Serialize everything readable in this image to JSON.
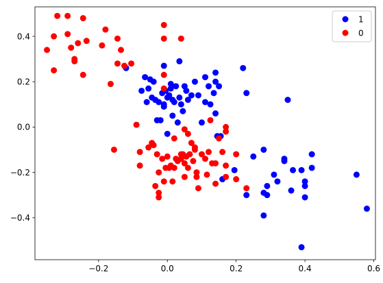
{
  "chart_data": {
    "type": "scatter",
    "title": "",
    "xlabel": "",
    "ylabel": "",
    "xlim": [
      -0.385,
      0.605
    ],
    "ylim": [
      -0.585,
      0.53
    ],
    "xticks": [
      -0.2,
      0.0,
      0.2,
      0.4,
      0.6
    ],
    "xtick_labels": [
      "−0.2",
      "0.0",
      "0.2",
      "0.4",
      "0.6"
    ],
    "yticks": [
      -0.4,
      -0.2,
      0.0,
      0.2,
      0.4
    ],
    "ytick_labels": [
      "−0.4",
      "−0.2",
      "0.0",
      "0.2",
      "0.4"
    ],
    "grid": false,
    "legend_position": "top-right",
    "series": [
      {
        "name": "1",
        "color": "#0000ff",
        "points": [
          [
            -0.12,
            0.26
          ],
          [
            -0.075,
            0.16
          ],
          [
            -0.065,
            0.22
          ],
          [
            -0.06,
            0.11
          ],
          [
            -0.055,
            0.17
          ],
          [
            -0.05,
            0.21
          ],
          [
            -0.045,
            0.13
          ],
          [
            -0.04,
            0.2
          ],
          [
            -0.035,
            0.12
          ],
          [
            -0.03,
            0.03
          ],
          [
            -0.025,
            0.11
          ],
          [
            -0.02,
            0.03
          ],
          [
            -0.015,
            0.15
          ],
          [
            -0.01,
            0.27
          ],
          [
            -0.01,
            0.1
          ],
          [
            -0.01,
            0.09
          ],
          [
            -0.005,
            0.16
          ],
          [
            0.0,
            0.13
          ],
          [
            0.0,
            -0.03
          ],
          [
            0.005,
            0.14
          ],
          [
            0.01,
            0.19
          ],
          [
            0.01,
            0.17
          ],
          [
            0.015,
            0.12
          ],
          [
            0.015,
            0.05
          ],
          [
            0.02,
            0.11
          ],
          [
            0.025,
            0.18
          ],
          [
            0.03,
            0.02
          ],
          [
            0.035,
            0.29
          ],
          [
            0.035,
            0.13
          ],
          [
            0.04,
            0.1
          ],
          [
            0.045,
            0.07
          ],
          [
            0.05,
            0.18
          ],
          [
            0.055,
            0.16
          ],
          [
            0.06,
            0.12
          ],
          [
            0.07,
            0.14
          ],
          [
            0.08,
            0.2
          ],
          [
            0.09,
            0.14
          ],
          [
            0.1,
            0.02
          ],
          [
            0.11,
            0.22
          ],
          [
            0.11,
            0.11
          ],
          [
            0.12,
            0.18
          ],
          [
            0.125,
            0.1
          ],
          [
            0.135,
            0.15
          ],
          [
            0.14,
            0.24
          ],
          [
            0.14,
            0.2
          ],
          [
            0.14,
            0.06
          ],
          [
            0.145,
            -0.04
          ],
          [
            0.15,
            0.18
          ],
          [
            0.155,
            -0.04
          ],
          [
            0.16,
            -0.23
          ],
          [
            0.195,
            -0.19
          ],
          [
            0.22,
            0.26
          ],
          [
            0.23,
            0.15
          ],
          [
            0.23,
            -0.3
          ],
          [
            0.25,
            -0.13
          ],
          [
            0.28,
            -0.1
          ],
          [
            0.28,
            -0.29
          ],
          [
            0.28,
            -0.39
          ],
          [
            0.29,
            -0.3
          ],
          [
            0.29,
            -0.26
          ],
          [
            0.31,
            -0.21
          ],
          [
            0.32,
            -0.24
          ],
          [
            0.34,
            -0.14
          ],
          [
            0.34,
            -0.15
          ],
          [
            0.35,
            0.12
          ],
          [
            0.36,
            -0.28
          ],
          [
            0.365,
            -0.19
          ],
          [
            0.39,
            -0.19
          ],
          [
            0.39,
            -0.53
          ],
          [
            0.4,
            -0.24
          ],
          [
            0.4,
            -0.26
          ],
          [
            0.4,
            -0.31
          ],
          [
            0.42,
            -0.12
          ],
          [
            0.42,
            -0.18
          ],
          [
            0.55,
            -0.21
          ],
          [
            0.58,
            -0.36
          ]
        ]
      },
      {
        "name": "0",
        "color": "#ff0000",
        "points": [
          [
            -0.35,
            0.34
          ],
          [
            -0.33,
            0.4
          ],
          [
            -0.33,
            0.25
          ],
          [
            -0.32,
            0.49
          ],
          [
            -0.29,
            0.49
          ],
          [
            -0.29,
            0.41
          ],
          [
            -0.28,
            0.35
          ],
          [
            -0.27,
            0.3
          ],
          [
            -0.27,
            0.29
          ],
          [
            -0.26,
            0.37
          ],
          [
            -0.245,
            0.48
          ],
          [
            -0.245,
            0.23
          ],
          [
            -0.235,
            0.38
          ],
          [
            -0.19,
            0.36
          ],
          [
            -0.18,
            0.43
          ],
          [
            -0.165,
            0.19
          ],
          [
            -0.155,
            -0.1
          ],
          [
            -0.145,
            0.39
          ],
          [
            -0.145,
            0.28
          ],
          [
            -0.135,
            0.34
          ],
          [
            -0.125,
            0.27
          ],
          [
            -0.105,
            0.28
          ],
          [
            -0.09,
            0.01
          ],
          [
            -0.08,
            -0.11
          ],
          [
            -0.08,
            -0.17
          ],
          [
            -0.055,
            -0.09
          ],
          [
            -0.045,
            -0.07
          ],
          [
            -0.04,
            -0.08
          ],
          [
            -0.035,
            -0.26
          ],
          [
            -0.03,
            -0.12
          ],
          [
            -0.025,
            -0.2
          ],
          [
            -0.025,
            -0.29
          ],
          [
            -0.025,
            -0.31
          ],
          [
            -0.015,
            -0.14
          ],
          [
            -0.01,
            0.45
          ],
          [
            -0.01,
            0.39
          ],
          [
            -0.01,
            0.23
          ],
          [
            -0.01,
            0.17
          ],
          [
            -0.01,
            -0.24
          ],
          [
            -0.005,
            -0.18
          ],
          [
            0.0,
            -0.13
          ],
          [
            0.005,
            -0.18
          ],
          [
            0.01,
            -0.17
          ],
          [
            0.015,
            -0.24
          ],
          [
            0.02,
            -0.18
          ],
          [
            0.02,
            -0.05
          ],
          [
            0.025,
            -0.14
          ],
          [
            0.03,
            -0.15
          ],
          [
            0.04,
            0.39
          ],
          [
            0.04,
            -0.14
          ],
          [
            0.04,
            -0.12
          ],
          [
            0.045,
            -0.12
          ],
          [
            0.05,
            -0.01
          ],
          [
            0.05,
            -0.16
          ],
          [
            0.05,
            -0.22
          ],
          [
            0.055,
            -0.13
          ],
          [
            0.06,
            -0.03
          ],
          [
            0.06,
            -0.18
          ],
          [
            0.065,
            -0.12
          ],
          [
            0.07,
            -0.07
          ],
          [
            0.075,
            -0.15
          ],
          [
            0.08,
            -0.09
          ],
          [
            0.08,
            -0.1
          ],
          [
            0.085,
            -0.22
          ],
          [
            0.085,
            -0.2
          ],
          [
            0.09,
            -0.27
          ],
          [
            0.1,
            -0.12
          ],
          [
            0.11,
            -0.14
          ],
          [
            0.115,
            -0.21
          ],
          [
            0.12,
            -0.11
          ],
          [
            0.125,
            0.03
          ],
          [
            0.13,
            -0.16
          ],
          [
            0.14,
            -0.16
          ],
          [
            0.14,
            -0.25
          ],
          [
            0.15,
            -0.05
          ],
          [
            0.16,
            -0.11
          ],
          [
            0.17,
            0.0
          ],
          [
            0.17,
            -0.02
          ],
          [
            0.17,
            -0.17
          ],
          [
            0.17,
            -0.22
          ],
          [
            0.2,
            -0.12
          ],
          [
            0.2,
            -0.23
          ],
          [
            0.23,
            -0.27
          ]
        ]
      }
    ]
  }
}
